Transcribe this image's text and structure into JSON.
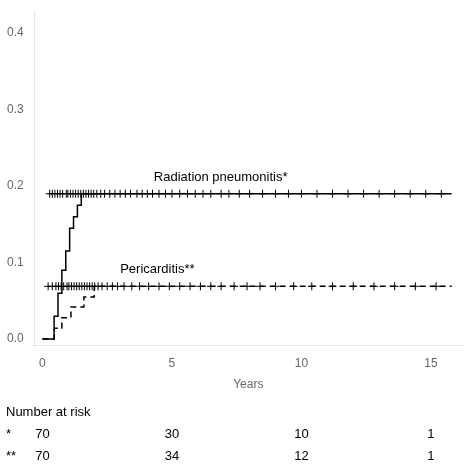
{
  "chart_data": {
    "type": "step",
    "xlabel": "Years",
    "xlim": [
      -0.3,
      16.2
    ],
    "ylim": [
      -0.008,
      0.43
    ],
    "xticks": [
      0,
      5,
      10,
      15
    ],
    "yticks": [
      {
        "value": 0,
        "label": "0.0"
      },
      0.1,
      0.2,
      0.3,
      0.4
    ],
    "grid": false,
    "series": [
      {
        "name": "Radiation pneumonitis*",
        "color": "#000000",
        "line_style": "solid",
        "marker": "plus",
        "x": [
          0,
          0.25,
          0.45,
          0.6,
          0.75,
          0.9,
          1.05,
          1.2,
          1.35,
          1.5,
          1.65,
          1.85,
          15.8
        ],
        "values": [
          0.0,
          0.0,
          0.03,
          0.06,
          0.09,
          0.115,
          0.145,
          0.16,
          0.175,
          0.19,
          0.19,
          0.19,
          0.19
        ],
        "censor_x": [
          0.28,
          0.38,
          0.48,
          0.58,
          0.68,
          0.78,
          0.92,
          0.98,
          1.08,
          1.18,
          1.28,
          1.38,
          1.48,
          1.58,
          1.68,
          1.78,
          1.88,
          1.98,
          2.1,
          2.25,
          2.4,
          2.6,
          2.8,
          3.0,
          3.2,
          3.4,
          3.65,
          3.85,
          4.05,
          4.25,
          4.5,
          4.75,
          5.0,
          5.3,
          5.6,
          5.9,
          6.2,
          6.5,
          6.9,
          7.2,
          7.6,
          8.0,
          8.5,
          9.0,
          9.5,
          10.0,
          10.6,
          11.2,
          11.8,
          12.4,
          13.0,
          13.6,
          14.2,
          14.8,
          15.4
        ],
        "censor_y": 0.19,
        "label_x": 4.3,
        "label_y": 0.203
      },
      {
        "name": "Pericarditis**",
        "color": "#000000",
        "line_style": "dashed",
        "marker": "plus",
        "x": [
          0,
          0.15,
          0.3,
          0.45,
          0.6,
          0.75,
          0.9,
          1.1,
          1.4,
          1.6,
          1.8,
          2.0,
          2.2,
          2.6,
          3.0,
          3.4,
          3.8,
          15.8
        ],
        "values": [
          0.0,
          0.0,
          0.0,
          0.014,
          0.014,
          0.028,
          0.028,
          0.042,
          0.042,
          0.055,
          0.055,
          0.069,
          0.069,
          0.069,
          0.069,
          0.069,
          0.069,
          0.069
        ],
        "censor_x": [
          0.22,
          0.38,
          0.52,
          0.62,
          0.72,
          0.82,
          0.95,
          1.02,
          1.12,
          1.22,
          1.32,
          1.42,
          1.52,
          1.62,
          1.72,
          1.82,
          1.92,
          2.02,
          2.15,
          2.3,
          2.5,
          2.7,
          2.9,
          3.15,
          3.45,
          3.75,
          4.1,
          4.5,
          4.9,
          5.3,
          5.7,
          6.1,
          6.5,
          6.9,
          7.4,
          7.9,
          8.4,
          9.0,
          9.7,
          10.4,
          11.2,
          12.0,
          12.8,
          13.6,
          14.4,
          15.2
        ],
        "censor_y": 0.069,
        "label_x": 3.0,
        "label_y": 0.082
      }
    ],
    "number_at_risk": {
      "title": "Number at risk",
      "at": [
        0,
        5,
        10,
        15
      ],
      "rows": [
        {
          "symbol": "*",
          "values": [
            70,
            30,
            10,
            1
          ]
        },
        {
          "symbol": "**",
          "values": [
            70,
            34,
            12,
            1
          ]
        }
      ]
    }
  }
}
